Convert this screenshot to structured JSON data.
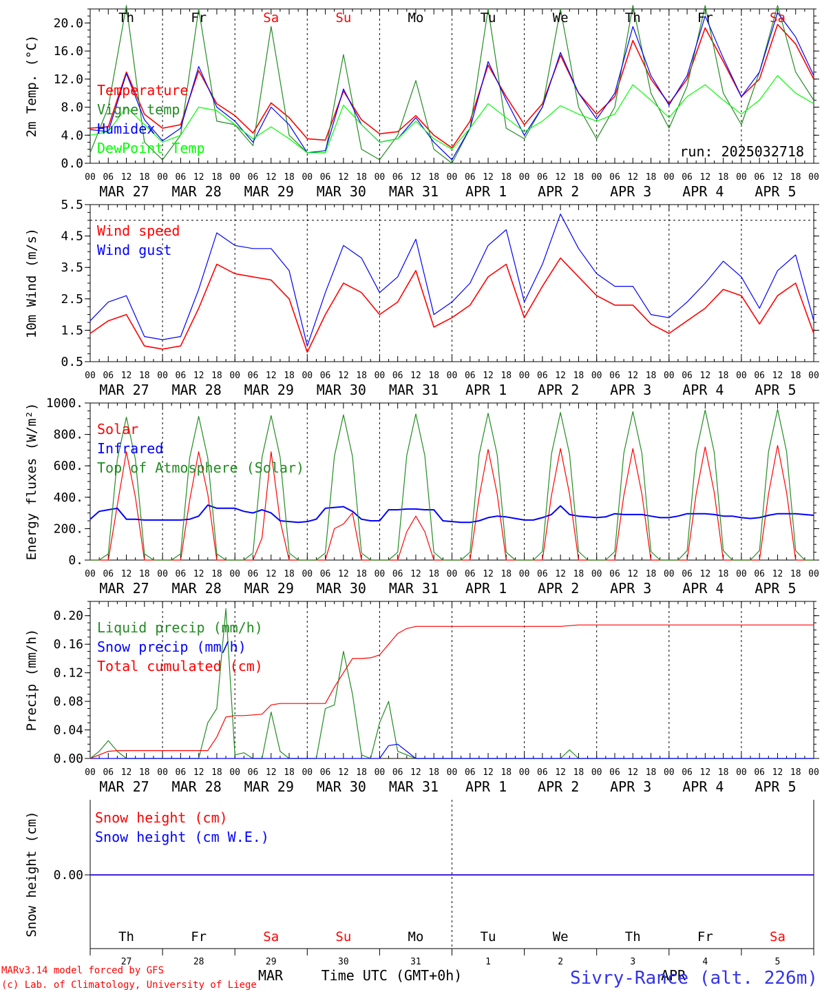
{
  "chart_data": [
    {
      "type": "line",
      "ylabel": "2m Temp. (°C)",
      "ylim": [
        0,
        22
      ],
      "yticks": [
        "0.0",
        "4.0",
        "8.0",
        "12.0",
        "16.0",
        "20.0"
      ],
      "run_label": "run: 2025032718",
      "day_labels": [
        {
          "text": "Th",
          "weekend": false
        },
        {
          "text": "Fr",
          "weekend": false
        },
        {
          "text": "Sa",
          "weekend": true
        },
        {
          "text": "Su",
          "weekend": true
        },
        {
          "text": "Mo",
          "weekend": false
        },
        {
          "text": "Tu",
          "weekend": false
        },
        {
          "text": "We",
          "weekend": false
        },
        {
          "text": "Th",
          "weekend": false
        },
        {
          "text": "Fr",
          "weekend": false
        },
        {
          "text": "Sa",
          "weekend": true
        }
      ],
      "x_hours": [
        0,
        6,
        12,
        18,
        24,
        30,
        36,
        42,
        48,
        54,
        60,
        66,
        72,
        78,
        84,
        90,
        96,
        102,
        108,
        114,
        120,
        126,
        132,
        138,
        144,
        150,
        156,
        162,
        168,
        174,
        180,
        186,
        192,
        198,
        204,
        210,
        216,
        222,
        228,
        234,
        240
      ],
      "series": [
        {
          "name": "Temperature",
          "color": "#ff0000",
          "values": [
            5.0,
            5.2,
            13.0,
            7.0,
            5.0,
            5.5,
            13.2,
            8.5,
            6.8,
            4.3,
            8.6,
            6.5,
            3.5,
            3.3,
            10.3,
            6.2,
            4.2,
            4.5,
            6.8,
            4.0,
            2.2,
            6.0,
            14.0,
            9.5,
            5.5,
            8.5,
            15.4,
            10.0,
            7.0,
            9.5,
            17.5,
            12.0,
            8.5,
            12.0,
            19.3,
            14.5,
            9.5,
            12.0,
            19.8,
            17.0,
            12.0
          ]
        },
        {
          "name": "Vigne temp",
          "color": "#228b22",
          "values": [
            1.5,
            8.0,
            22.5,
            3.0,
            0.5,
            4.0,
            22.0,
            6.0,
            5.5,
            2.5,
            19.5,
            4.0,
            1.5,
            1.5,
            15.5,
            2.0,
            0.5,
            4.0,
            11.8,
            2.0,
            0.0,
            5.0,
            22.0,
            5.0,
            3.5,
            8.0,
            22.0,
            8.0,
            3.5,
            8.0,
            22.5,
            10.0,
            5.0,
            11.0,
            22.5,
            10.0,
            5.5,
            13.0,
            22.5,
            13.0,
            9.0
          ]
        },
        {
          "name": "Humidex",
          "color": "#0000ff",
          "values": [
            4.8,
            4.5,
            12.8,
            6.2,
            3.2,
            5.0,
            13.8,
            8.0,
            6.0,
            3.0,
            8.0,
            5.5,
            1.5,
            1.8,
            10.6,
            5.5,
            3.0,
            3.5,
            6.5,
            3.0,
            0.5,
            5.0,
            14.5,
            9.0,
            4.0,
            8.0,
            15.8,
            10.0,
            6.3,
            10.0,
            19.5,
            12.5,
            8.3,
            12.5,
            21.0,
            15.0,
            9.5,
            13.0,
            21.5,
            18.0,
            12.5
          ]
        },
        {
          "name": "DewPoint Temp",
          "color": "#00ff00",
          "values": [
            4.0,
            4.5,
            8.0,
            5.5,
            3.0,
            4.0,
            8.0,
            7.5,
            5.5,
            3.5,
            5.2,
            3.5,
            1.5,
            1.5,
            8.3,
            5.5,
            3.0,
            3.5,
            6.0,
            3.5,
            2.0,
            5.0,
            8.5,
            6.5,
            4.5,
            6.0,
            8.2,
            7.0,
            6.0,
            7.0,
            11.2,
            9.0,
            6.5,
            9.5,
            11.2,
            9.0,
            7.0,
            9.0,
            12.5,
            10.0,
            8.5
          ]
        }
      ]
    },
    {
      "type": "line",
      "ylabel": "10m Wind (m/s)",
      "ylim": [
        0.5,
        5.5
      ],
      "yticks": [
        "0.5",
        "1.5",
        "2.5",
        "3.5",
        "4.5",
        "5.5"
      ],
      "ref_line": 5.0,
      "x_hours": [
        0,
        6,
        12,
        18,
        24,
        30,
        36,
        42,
        48,
        54,
        60,
        66,
        72,
        78,
        84,
        90,
        96,
        102,
        108,
        114,
        120,
        126,
        132,
        138,
        144,
        150,
        156,
        162,
        168,
        174,
        180,
        186,
        192,
        198,
        204,
        210,
        216,
        222,
        228,
        234,
        240
      ],
      "series": [
        {
          "name": "Wind speed",
          "color": "#ff0000",
          "values": [
            1.4,
            1.8,
            2.0,
            1.0,
            0.9,
            1.0,
            2.2,
            3.6,
            3.3,
            3.2,
            3.1,
            2.5,
            0.8,
            2.0,
            3.0,
            2.7,
            2.0,
            2.4,
            3.4,
            1.6,
            1.9,
            2.3,
            3.2,
            3.6,
            1.9,
            2.9,
            3.8,
            3.2,
            2.6,
            2.3,
            2.3,
            1.7,
            1.4,
            1.8,
            2.2,
            2.8,
            2.6,
            1.7,
            2.6,
            3.0,
            1.4
          ]
        },
        {
          "name": "Wind gust",
          "color": "#0000ff",
          "values": [
            1.8,
            2.4,
            2.6,
            1.3,
            1.2,
            1.3,
            2.8,
            4.6,
            4.2,
            4.1,
            4.1,
            3.4,
            1.0,
            2.7,
            4.2,
            3.8,
            2.7,
            3.2,
            4.4,
            2.0,
            2.4,
            3.0,
            4.2,
            4.7,
            2.4,
            3.6,
            5.2,
            4.1,
            3.3,
            2.9,
            2.9,
            2.0,
            1.9,
            2.4,
            3.0,
            3.7,
            3.2,
            2.2,
            3.4,
            3.9,
            1.8
          ]
        }
      ]
    },
    {
      "type": "line",
      "ylabel": "Energy fluxes (W/m²)",
      "ylim": [
        0,
        1000
      ],
      "yticks": [
        "0.",
        "200.",
        "400.",
        "600.",
        "800.",
        "1000."
      ],
      "x_hours": [
        0,
        3,
        6,
        9,
        12,
        15,
        18,
        21,
        24,
        27,
        30,
        33,
        36,
        39,
        42,
        45,
        48,
        51,
        54,
        57,
        60,
        63,
        66,
        69,
        72,
        75,
        78,
        81,
        84,
        87,
        90,
        93,
        96,
        99,
        102,
        105,
        108,
        111,
        114,
        117,
        120,
        123,
        126,
        129,
        132,
        135,
        138,
        141,
        144,
        147,
        150,
        153,
        156,
        159,
        162,
        165,
        168,
        171,
        174,
        177,
        180,
        183,
        186,
        189,
        192,
        195,
        198,
        201,
        204,
        207,
        210,
        213,
        216,
        219,
        222,
        225,
        228,
        231,
        234,
        237,
        240
      ],
      "series": [
        {
          "name": "Solar",
          "color": "#ff0000",
          "values": [
            0,
            0,
            0,
            350,
            690,
            400,
            0,
            0,
            0,
            0,
            0,
            380,
            690,
            420,
            0,
            0,
            0,
            0,
            0,
            140,
            690,
            250,
            0,
            0,
            0,
            0,
            0,
            200,
            230,
            300,
            0,
            0,
            0,
            0,
            0,
            180,
            280,
            180,
            0,
            0,
            0,
            0,
            0,
            400,
            705,
            420,
            0,
            0,
            0,
            0,
            0,
            410,
            710,
            420,
            0,
            0,
            0,
            0,
            0,
            410,
            710,
            420,
            0,
            0,
            0,
            0,
            0,
            420,
            720,
            430,
            0,
            0,
            0,
            0,
            0,
            420,
            730,
            430,
            0,
            0,
            0
          ]
        },
        {
          "name": "Infrared",
          "color": "#0000ff",
          "values": [
            260,
            310,
            320,
            330,
            260,
            260,
            255,
            255,
            255,
            255,
            255,
            260,
            280,
            350,
            330,
            330,
            330,
            310,
            300,
            320,
            300,
            250,
            245,
            240,
            245,
            260,
            330,
            335,
            340,
            310,
            260,
            250,
            250,
            320,
            320,
            325,
            325,
            320,
            320,
            250,
            245,
            240,
            240,
            250,
            270,
            280,
            275,
            265,
            255,
            255,
            270,
            290,
            345,
            290,
            280,
            275,
            270,
            275,
            295,
            290,
            290,
            290,
            280,
            270,
            270,
            280,
            295,
            295,
            295,
            290,
            280,
            280,
            270,
            265,
            270,
            285,
            295,
            295,
            295,
            290,
            285
          ]
        },
        {
          "name": "Top of Atmosphere (Solar)",
          "color": "#228b22",
          "values": [
            0,
            0,
            40,
            640,
            910,
            640,
            40,
            0,
            0,
            0,
            40,
            650,
            915,
            650,
            40,
            0,
            0,
            0,
            45,
            655,
            920,
            655,
            45,
            0,
            0,
            0,
            45,
            660,
            925,
            660,
            45,
            0,
            0,
            0,
            50,
            665,
            930,
            665,
            50,
            0,
            0,
            0,
            50,
            670,
            935,
            670,
            50,
            0,
            0,
            0,
            55,
            675,
            940,
            675,
            55,
            0,
            0,
            0,
            55,
            680,
            945,
            680,
            55,
            0,
            0,
            0,
            60,
            685,
            955,
            685,
            60,
            0,
            0,
            0,
            60,
            690,
            960,
            690,
            60,
            0,
            0
          ]
        }
      ]
    },
    {
      "type": "line",
      "ylabel": "Precip (mm/h)",
      "ylim": [
        0,
        0.22
      ],
      "yticks": [
        "0.00",
        "0.04",
        "0.08",
        "0.12",
        "0.16",
        "0.20"
      ],
      "x_hours": [
        0,
        3,
        6,
        9,
        12,
        15,
        18,
        21,
        24,
        27,
        30,
        33,
        36,
        39,
        42,
        45,
        48,
        51,
        54,
        57,
        60,
        63,
        66,
        69,
        72,
        75,
        78,
        81,
        84,
        87,
        90,
        93,
        96,
        99,
        102,
        105,
        108,
        111,
        114,
        117,
        120,
        123,
        126,
        129,
        132,
        135,
        138,
        141,
        144,
        147,
        150,
        153,
        156,
        159,
        162,
        165,
        168,
        171,
        174,
        177,
        180,
        183,
        186,
        189,
        192,
        195,
        198,
        201,
        204,
        207,
        210,
        213,
        216,
        219,
        222,
        225,
        228,
        231,
        234,
        237,
        240
      ],
      "series": [
        {
          "name": "Liquid precip (mm/h)",
          "color": "#228b22",
          "values": [
            0,
            0.01,
            0.025,
            0.01,
            0,
            0,
            0,
            0,
            0,
            0,
            0,
            0,
            0,
            0.05,
            0.07,
            0.21,
            0.005,
            0.008,
            0,
            0,
            0.065,
            0.01,
            0,
            0,
            0,
            0,
            0.07,
            0.075,
            0.15,
            0.09,
            0.005,
            0,
            0.05,
            0.08,
            0.01,
            0.005,
            0,
            0,
            0,
            0,
            0,
            0,
            0,
            0,
            0,
            0,
            0,
            0,
            0,
            0,
            0,
            0,
            0,
            0.012,
            0,
            0,
            0,
            0,
            0,
            0,
            0,
            0,
            0,
            0,
            0,
            0,
            0,
            0,
            0,
            0,
            0,
            0,
            0,
            0,
            0,
            0,
            0,
            0,
            0,
            0,
            0
          ]
        },
        {
          "name": "Snow precip (mm/h)",
          "color": "#0000ff",
          "values": [
            0,
            0,
            0,
            0,
            0,
            0,
            0,
            0,
            0,
            0,
            0,
            0,
            0,
            0,
            0,
            0,
            0,
            0,
            0,
            0,
            0,
            0,
            0,
            0,
            0,
            0,
            0,
            0,
            0,
            0,
            0,
            0,
            0,
            0.018,
            0.02,
            0.01,
            0,
            0,
            0,
            0,
            0,
            0,
            0,
            0,
            0,
            0,
            0,
            0,
            0,
            0,
            0,
            0,
            0,
            0,
            0,
            0,
            0,
            0,
            0,
            0,
            0,
            0,
            0,
            0,
            0,
            0,
            0,
            0,
            0,
            0,
            0,
            0,
            0,
            0,
            0,
            0,
            0,
            0,
            0,
            0,
            0
          ]
        },
        {
          "name": "Total cumulated (cm)",
          "color": "#ff0000",
          "values": [
            0,
            0.005,
            0.01,
            0.011,
            0.011,
            0.011,
            0.011,
            0.011,
            0.011,
            0.011,
            0.011,
            0.011,
            0.011,
            0.011,
            0.03,
            0.058,
            0.06,
            0.06,
            0.061,
            0.062,
            0.075,
            0.077,
            0.077,
            0.077,
            0.077,
            0.077,
            0.077,
            0.1,
            0.12,
            0.14,
            0.14,
            0.141,
            0.145,
            0.16,
            0.175,
            0.182,
            0.185,
            0.185,
            0.185,
            0.185,
            0.185,
            0.185,
            0.185,
            0.185,
            0.185,
            0.185,
            0.185,
            0.185,
            0.185,
            0.185,
            0.185,
            0.185,
            0.185,
            0.186,
            0.187,
            0.187,
            0.187,
            0.187,
            0.187,
            0.187,
            0.187,
            0.187,
            0.187,
            0.187,
            0.187,
            0.187,
            0.187,
            0.187,
            0.187,
            0.187,
            0.187,
            0.187,
            0.187,
            0.187,
            0.187,
            0.187,
            0.187,
            0.187,
            0.187,
            0.187,
            0.187
          ]
        }
      ]
    },
    {
      "type": "line",
      "ylabel": "Snow height (cm)",
      "ytick": "0.00",
      "x_hours": [
        0,
        240
      ],
      "series": [
        {
          "name": "Snow height (cm)",
          "color": "#ff0000",
          "values": [
            0,
            0
          ]
        },
        {
          "name": "Snow height (cm W.E.)",
          "color": "#0000ff",
          "values": [
            0,
            0
          ]
        }
      ]
    }
  ],
  "axis": {
    "hour_labels": [
      "00",
      "06",
      "12",
      "18"
    ],
    "date_labels": [
      "MAR 27",
      "MAR 28",
      "MAR 29",
      "MAR 30",
      "MAR 31",
      "APR  1",
      "APR  2",
      "APR  3",
      "APR  4",
      "APR  5"
    ],
    "bottom_day_numbers": [
      "27",
      "28",
      "29",
      "30",
      "31",
      "1",
      "2",
      "3",
      "4",
      "5"
    ],
    "mar_label": "MAR",
    "apr_label": "APR",
    "xlabel": "Time UTC (GMT+0h)"
  },
  "footer": {
    "credit_line1": "MARv3.14 model forced by GFS",
    "credit_line2": "(c) Lab. of Climatology, University of Liege",
    "station": "Sivry-Rance (alt. 226m)"
  },
  "colors": {
    "red": "#ff0000",
    "blue": "#0000ff",
    "green": "#228b22",
    "lime": "#00ff00",
    "station": "#3333ee"
  }
}
